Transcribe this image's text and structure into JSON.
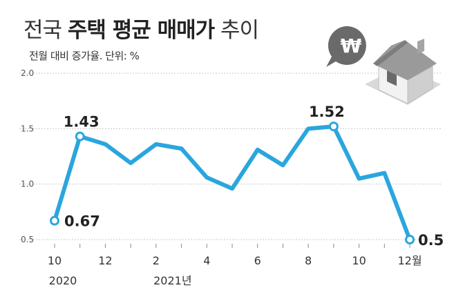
{
  "header": {
    "title_prefix": "전국",
    "title_bold": "주택 평균 매매가",
    "title_suffix": "추이",
    "subtitle": "전월 대비 증가율. 단위: %"
  },
  "icon": {
    "currency_symbol": "₩",
    "name": "house-icon"
  },
  "colors": {
    "line": "#2aa6dd",
    "grid": "#c8c8c8",
    "marker_fill": "#ffffff"
  },
  "chart_data": {
    "type": "line",
    "title": "전국 주택 평균 매매가 추이",
    "ylabel": "전월 대비 증가율. 단위: %",
    "ylim": [
      0.5,
      2.0
    ],
    "yticks": [
      "2.0",
      "1.5",
      "1.0",
      "0.5"
    ],
    "yticks_values": [
      2.0,
      1.5,
      1.0,
      0.5
    ],
    "x": [
      "2020-10",
      "2020-11",
      "2020-12",
      "2021-01",
      "2021-02",
      "2021-03",
      "2021-04",
      "2021-05",
      "2021-06",
      "2021-07",
      "2021-08",
      "2021-09",
      "2021-10",
      "2021-11",
      "2021-12"
    ],
    "xtick_labels": [
      {
        "x": "2020-10",
        "label": "10"
      },
      {
        "x": "2020-12",
        "label": "12"
      },
      {
        "x": "2021-02",
        "label": "2"
      },
      {
        "x": "2021-04",
        "label": "4"
      },
      {
        "x": "2021-06",
        "label": "6"
      },
      {
        "x": "2021-08",
        "label": "8"
      },
      {
        "x": "2021-10",
        "label": "10"
      },
      {
        "x": "2021-12",
        "label": "12월"
      }
    ],
    "year_labels": [
      {
        "x": "2020-10",
        "label": "2020"
      },
      {
        "x": "2021-02",
        "label": "2021년"
      }
    ],
    "values": [
      0.67,
      1.43,
      1.36,
      1.19,
      1.36,
      1.32,
      1.06,
      0.96,
      1.31,
      1.17,
      1.5,
      1.52,
      1.05,
      1.1,
      0.5
    ],
    "data_labels": [
      {
        "x": "2020-10",
        "label": "0.67"
      },
      {
        "x": "2020-11",
        "label": "1.43"
      },
      {
        "x": "2021-09",
        "label": "1.52"
      },
      {
        "x": "2021-12",
        "label": "0.5"
      }
    ],
    "grid": "horizontal"
  }
}
